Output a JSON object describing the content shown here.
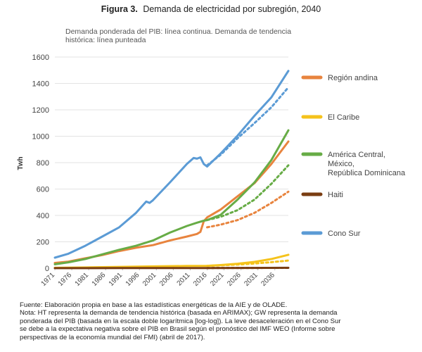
{
  "chart_data": {
    "type": "line",
    "title_prefix": "Figura 3.",
    "title": "Demanda de electricidad por subregión, 2040",
    "subtitle_lines": [
      "Demanda ponderada del PIB: línea continua. Demanda de tendencia",
      "histórica: línea punteada"
    ],
    "ylabel": "Twh",
    "xlabel": "",
    "ylim": [
      0,
      1600
    ],
    "xlim": [
      1971,
      2040
    ],
    "y_ticks": [
      0,
      200,
      400,
      600,
      800,
      1000,
      1200,
      1400,
      1600
    ],
    "x_ticks": [
      "1971",
      "1976",
      "1981",
      "1986",
      "1991",
      "1996",
      "2001",
      "2006",
      "2011",
      "2016",
      "2021",
      "2026",
      "2031",
      "2036"
    ],
    "grid": "horizontal",
    "legend_position": "right",
    "series": [
      {
        "name": "Región andina",
        "color": "#e8843e",
        "x": [
          1971,
          1975,
          1980,
          1985,
          1990,
          1995,
          2000,
          2005,
          2010,
          2013,
          2014,
          2015,
          2016,
          2020,
          2025,
          2030,
          2035,
          2040
        ],
        "values": [
          40,
          50,
          75,
          100,
          130,
          155,
          175,
          210,
          240,
          260,
          275,
          355,
          385,
          445,
          545,
          645,
          790,
          960
        ],
        "trend_x": [
          2016,
          2020,
          2025,
          2030,
          2035,
          2040
        ],
        "trend_values": [
          310,
          330,
          365,
          420,
          495,
          580
        ]
      },
      {
        "name": "El Caribe",
        "color": "#f5c31c",
        "x": [
          1971,
          1980,
          1990,
          2000,
          2010,
          2016,
          2020,
          2025,
          2030,
          2035,
          2040
        ],
        "values": [
          3,
          6,
          10,
          14,
          17,
          18,
          24,
          34,
          48,
          70,
          102
        ],
        "trend_x": [
          2016,
          2020,
          2025,
          2030,
          2035,
          2040
        ],
        "trend_values": [
          18,
          22,
          28,
          36,
          46,
          58
        ]
      },
      {
        "name": "América Central, México, República Dominicana",
        "color": "#67ac46",
        "x": [
          1971,
          1975,
          1980,
          1985,
          1990,
          1995,
          2000,
          2005,
          2010,
          2013,
          2015,
          2016,
          2020,
          2025,
          2030,
          2035,
          2040
        ],
        "values": [
          30,
          45,
          70,
          105,
          140,
          170,
          210,
          270,
          320,
          345,
          360,
          365,
          405,
          520,
          650,
          820,
          1045
        ],
        "trend_x": [
          2016,
          2020,
          2025,
          2030,
          2035,
          2040
        ],
        "trend_values": [
          365,
          390,
          440,
          520,
          640,
          780
        ]
      },
      {
        "name": "Haiti",
        "color": "#7a3d12",
        "x": [
          1971,
          1990,
          2016,
          2040
        ],
        "values": [
          0.5,
          1,
          1.5,
          3
        ],
        "trend_x": [
          2016,
          2040
        ],
        "trend_values": [
          1.5,
          2.5
        ]
      },
      {
        "name": "Cono Sur",
        "color": "#5b9bd5",
        "x": [
          1971,
          1975,
          1980,
          1985,
          1990,
          1995,
          1998,
          1999,
          2000,
          2005,
          2010,
          2012,
          2013,
          2014,
          2015,
          2016,
          2020,
          2025,
          2030,
          2035,
          2040
        ],
        "values": [
          80,
          110,
          170,
          240,
          310,
          420,
          505,
          495,
          515,
          650,
          790,
          835,
          830,
          840,
          790,
          770,
          870,
          1005,
          1155,
          1295,
          1495
        ],
        "trend_x": [
          2016,
          2020,
          2025,
          2030,
          2035,
          2040
        ],
        "trend_values": [
          780,
          860,
          985,
          1100,
          1220,
          1370
        ]
      }
    ]
  },
  "footnote": {
    "lines": [
      "Fuente: Elaboración propia en base a las estadísticas energéticas de la AIE y de OLADE.",
      "Nota: HT representa la demanda de tendencia histórica (basada en ARIMAX); GW representa la demanda",
      "ponderada del PIB (basada en la escala doble logarítmica [log-log]). La leve desaceleración en el Cono Sur",
      "se debe a la expectativa negativa sobre el PIB en Brasil según el pronóstico del IMF WEO (Informe sobre",
      "perspectivas de la economía mundial del FMI) (abril de 2017)."
    ]
  }
}
